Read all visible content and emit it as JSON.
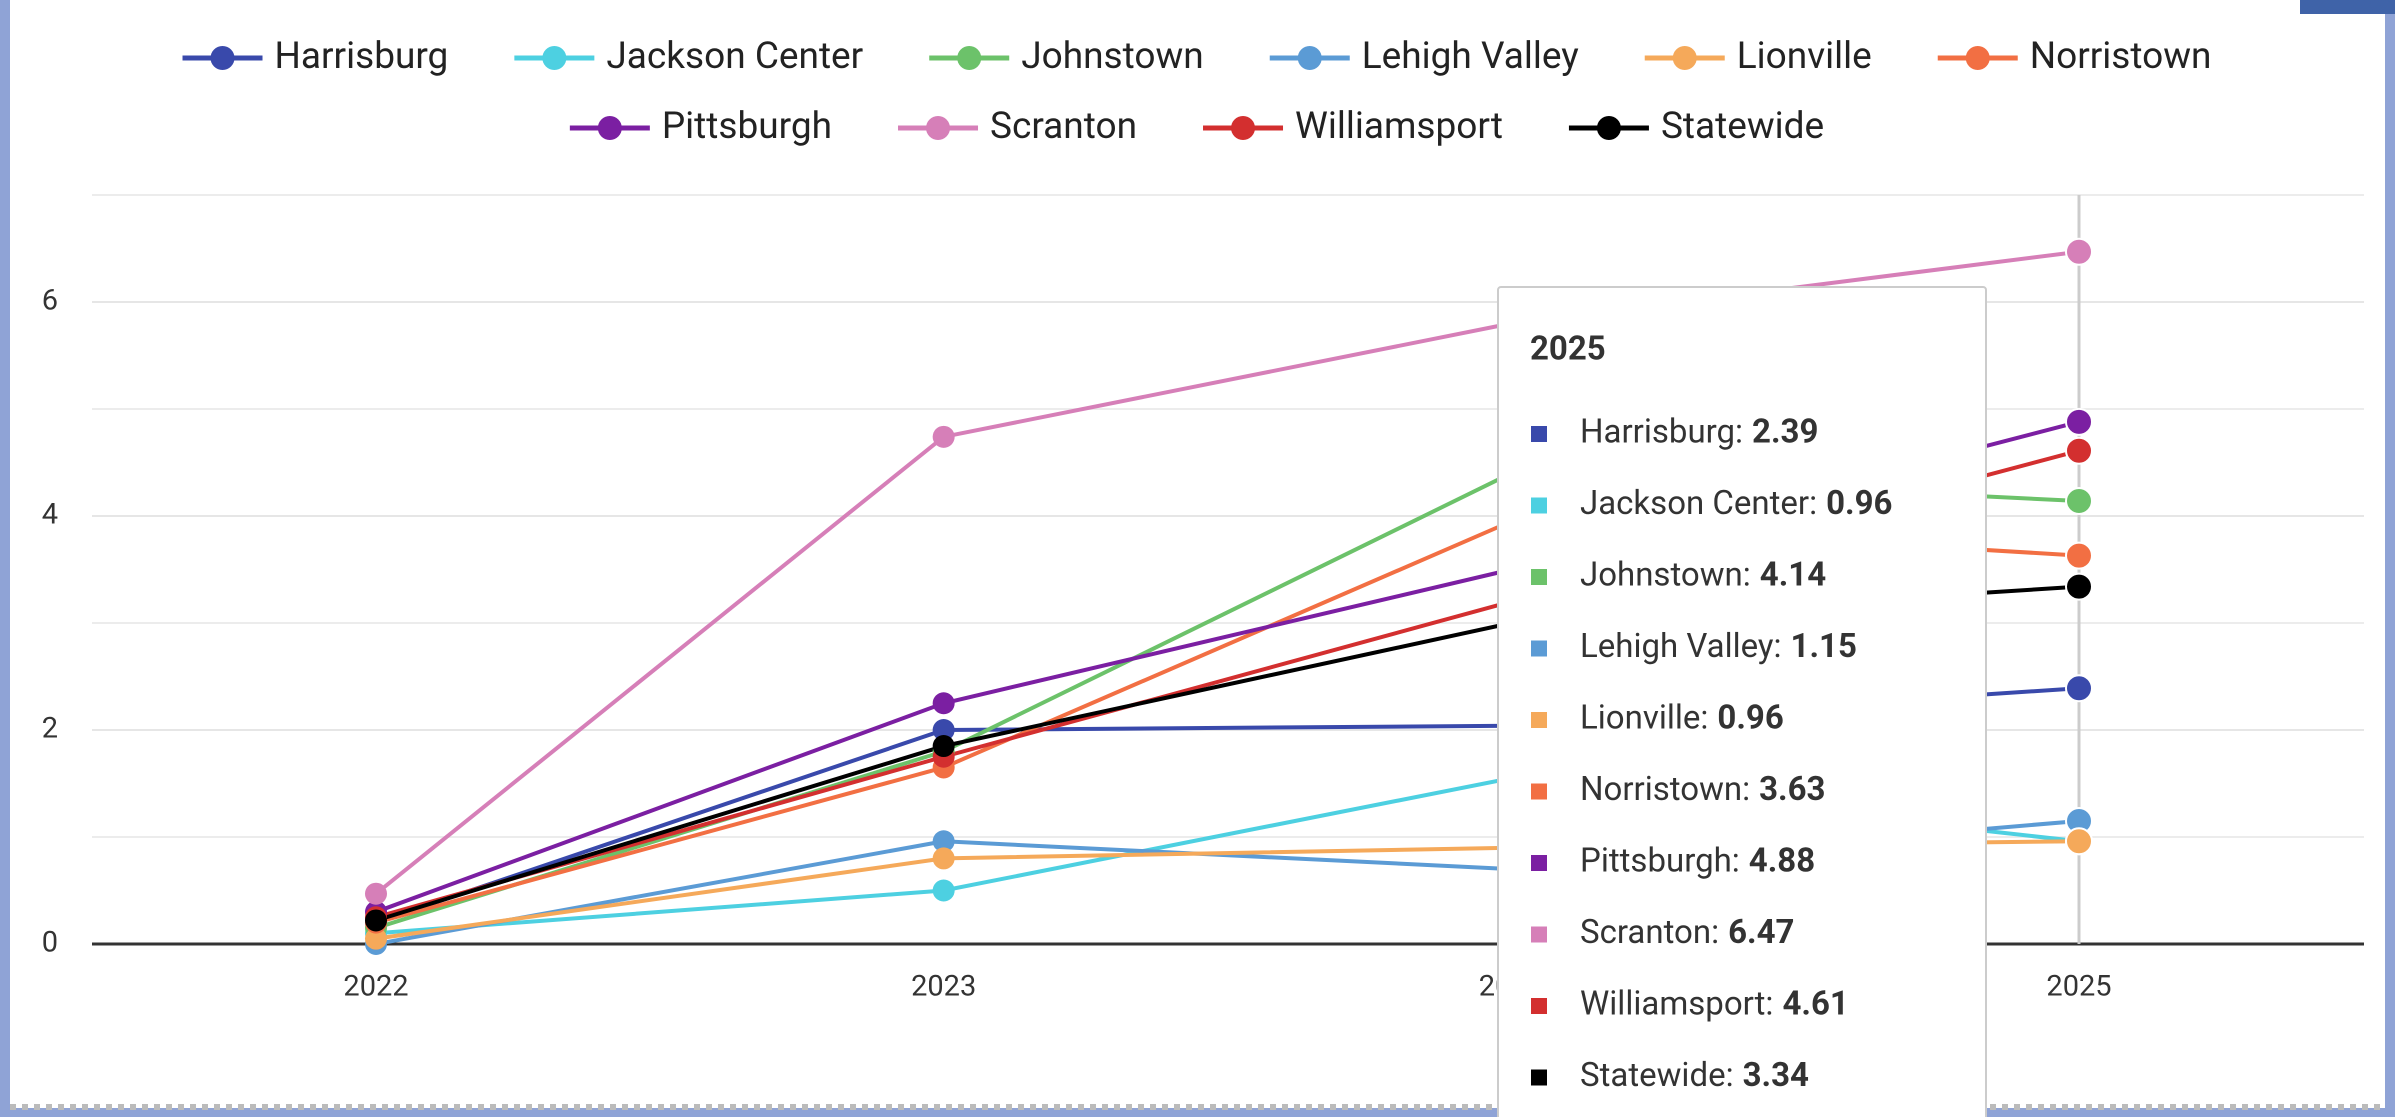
{
  "chart_data": {
    "type": "line",
    "categories": [
      "2022",
      "2023",
      "2024",
      "2025"
    ],
    "series": [
      {
        "name": "Harrisburg",
        "color": "#3949ab",
        "values": [
          0.2,
          2.0,
          2.04,
          2.39
        ]
      },
      {
        "name": "Jackson Center",
        "color": "#4dd0e1",
        "values": [
          0.1,
          0.5,
          1.55,
          0.96
        ]
      },
      {
        "name": "Johnstown",
        "color": "#6cc26a",
        "values": [
          0.15,
          1.8,
          4.4,
          4.14
        ]
      },
      {
        "name": "Lehigh Valley",
        "color": "#5b9bd5",
        "values": [
          0.0,
          0.96,
          0.7,
          1.15
        ]
      },
      {
        "name": "Lionville",
        "color": "#f5a95a",
        "values": [
          0.05,
          0.8,
          0.9,
          0.96
        ]
      },
      {
        "name": "Norristown",
        "color": "#f26f43",
        "values": [
          0.2,
          1.65,
          3.95,
          3.63
        ]
      },
      {
        "name": "Pittsburgh",
        "color": "#7b1fa2",
        "values": [
          0.3,
          2.25,
          3.5,
          4.88
        ]
      },
      {
        "name": "Scranton",
        "color": "#d67fb8",
        "values": [
          0.47,
          4.74,
          5.8,
          6.47
        ]
      },
      {
        "name": "Williamsport",
        "color": "#d32f2f",
        "values": [
          0.25,
          1.75,
          3.2,
          4.61
        ]
      },
      {
        "name": "Statewide",
        "color": "#000000",
        "values": [
          0.22,
          1.85,
          3.0,
          3.34
        ]
      }
    ],
    "ylim": [
      0,
      7
    ],
    "yticks": [
      0,
      2,
      4,
      6
    ],
    "minor_yticks": [
      1,
      3,
      5,
      7
    ],
    "grid": true,
    "legend": "top",
    "tooltip": {
      "title": "2025",
      "labels": [
        "Harrisburg:",
        "Jackson Center:",
        "Johnstown:",
        "Lehigh Valley:",
        "Lionville:",
        "Norristown:",
        "Pittsburgh:",
        "Scranton:",
        "Williamsport:",
        "Statewide:"
      ]
    }
  }
}
